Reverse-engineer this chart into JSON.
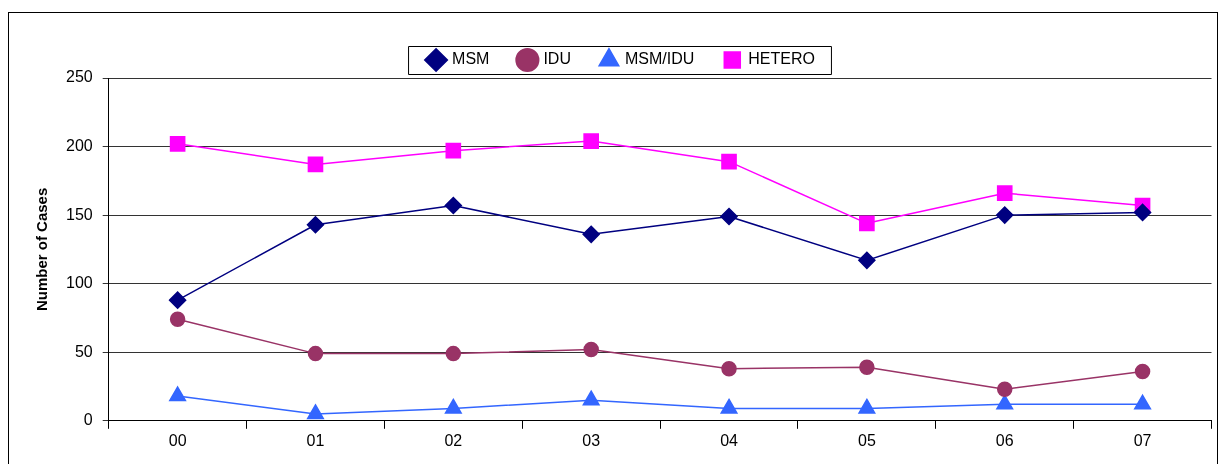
{
  "chart_data": {
    "type": "line",
    "ylabel": "Number of Cases",
    "categories": [
      "00",
      "01",
      "02",
      "03",
      "04",
      "05",
      "06",
      "07"
    ],
    "series": [
      {
        "name": "MSM",
        "color": "#000080",
        "marker": "diamond",
        "values": [
          88,
          143,
          157,
          136,
          149,
          117,
          150,
          152
        ]
      },
      {
        "name": "IDU",
        "color": "#993366",
        "marker": "circle",
        "values": [
          74,
          49,
          49,
          52,
          38,
          39,
          23,
          36
        ]
      },
      {
        "name": "MSM/IDU",
        "color": "#3366ff",
        "marker": "triangle",
        "values": [
          18,
          5,
          9,
          15,
          9,
          9,
          12,
          12
        ]
      },
      {
        "name": "HETERO",
        "color": "#ff00ff",
        "marker": "square",
        "values": [
          202,
          187,
          197,
          204,
          189,
          144,
          166,
          157
        ]
      }
    ],
    "ylim": [
      0,
      250
    ],
    "yticks": [
      0,
      50,
      100,
      150,
      200,
      250
    ],
    "grid": "y",
    "legend": "top",
    "line_style": "solid"
  }
}
